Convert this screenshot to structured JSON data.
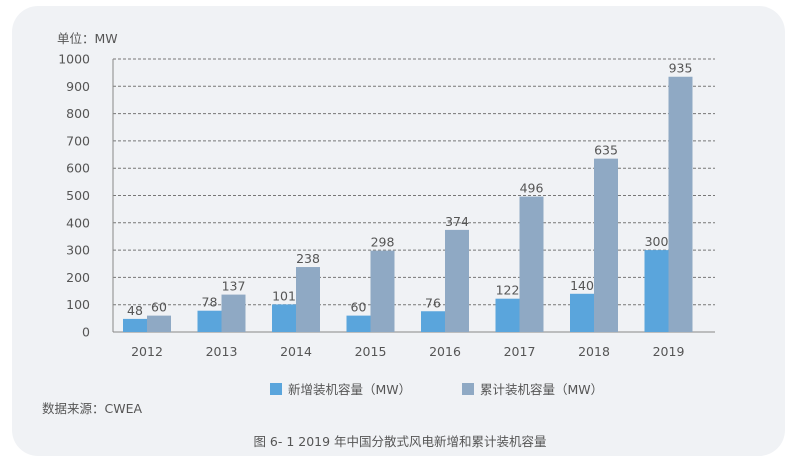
{
  "chart_data": {
    "type": "bar",
    "unit_label": "单位：MW",
    "categories": [
      "2012",
      "2013",
      "2014",
      "2015",
      "2016",
      "2017",
      "2018",
      "2019"
    ],
    "series": [
      {
        "name": "新增装机容量（MW）",
        "color": "#5aa5dc",
        "values": [
          48,
          78,
          101,
          60,
          76,
          122,
          140,
          300
        ]
      },
      {
        "name": "累计装机容量（MW）",
        "color": "#8fa9c4",
        "values": [
          60,
          137,
          238,
          298,
          374,
          496,
          635,
          935
        ]
      }
    ],
    "ylim": [
      0,
      1000
    ],
    "yticks": [
      0,
      100,
      200,
      300,
      400,
      500,
      600,
      700,
      800,
      900,
      1000
    ],
    "grid": "dashed horizontal",
    "legend": "bottom",
    "source": "数据来源：CWEA",
    "caption": "图 6- 1 2019 年中国分散式风电新增和累计装机容量"
  }
}
